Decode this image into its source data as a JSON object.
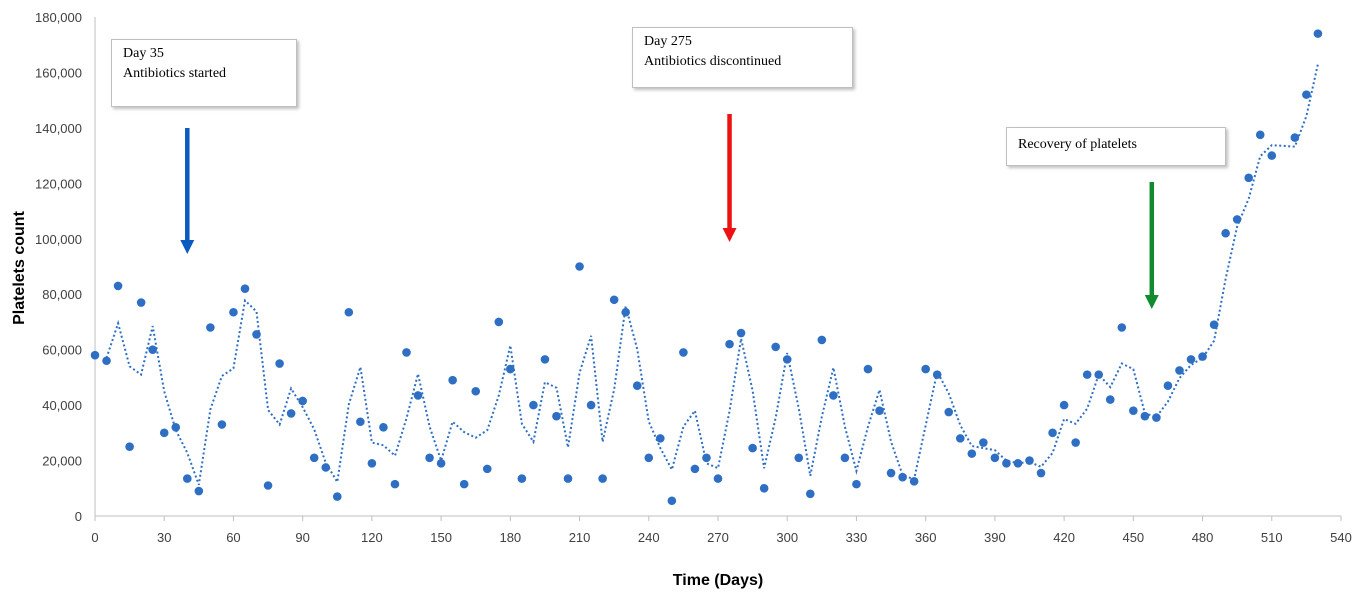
{
  "chart_data": {
    "type": "scatter",
    "xlabel": "Time (Days)",
    "ylabel": "Platelets count",
    "xlim": [
      0,
      540
    ],
    "ylim": [
      0,
      180000
    ],
    "x_ticks": [
      "0",
      "30",
      "60",
      "90",
      "120",
      "150",
      "180",
      "210",
      "240",
      "270",
      "300",
      "330",
      "360",
      "390",
      "420",
      "450",
      "480",
      "510",
      "540"
    ],
    "y_ticks": [
      "0",
      "20,000",
      "40,000",
      "60,000",
      "80,000",
      "100,000",
      "120,000",
      "140,000",
      "160,000",
      "180,000"
    ],
    "grid": false,
    "colors": {
      "points": "#2e6fc4",
      "trendline": "#2e6fc4",
      "axis": "#bfbfbf"
    },
    "series": [
      {
        "style": "markers + dotted moving-average trendline",
        "x": [
          0,
          5,
          10,
          15,
          20,
          25,
          30,
          35,
          40,
          45,
          50,
          55,
          60,
          65,
          70,
          75,
          80,
          85,
          90,
          95,
          100,
          105,
          110,
          115,
          120,
          125,
          130,
          135,
          140,
          145,
          150,
          155,
          160,
          165,
          170,
          175,
          180,
          185,
          190,
          195,
          200,
          205,
          210,
          215,
          220,
          225,
          230,
          235,
          240,
          245,
          250,
          255,
          260,
          265,
          270,
          275,
          280,
          285,
          290,
          295,
          300,
          305,
          310,
          315,
          320,
          325,
          330,
          335,
          340,
          345,
          350,
          355,
          360,
          365,
          370,
          375,
          380,
          385,
          390,
          395,
          400,
          405,
          410,
          415,
          420,
          425,
          430,
          435,
          440,
          445,
          450,
          455,
          460,
          465,
          470,
          475,
          480,
          485,
          490,
          495,
          500,
          505,
          510,
          515,
          520,
          525,
          530
        ],
        "y": [
          58000,
          56000,
          83000,
          25000,
          77000,
          60000,
          30000,
          32000,
          13500,
          9000,
          68000,
          33000,
          73500,
          82000,
          65500,
          11000,
          55000,
          37000,
          41500,
          21000,
          17500,
          7000,
          73500,
          34000,
          19000,
          32000,
          11500,
          59000,
          43500,
          21000,
          19000,
          49000,
          11500,
          45000,
          17000,
          70000,
          53000,
          13500,
          40000,
          56500,
          36000,
          13500,
          90000,
          40000,
          13500,
          78000,
          73500,
          47000,
          21000,
          28000,
          5500,
          59000,
          17000,
          21000,
          13500,
          62000,
          66000,
          24500,
          10000,
          61000,
          56500,
          21000,
          8000,
          63500,
          43500,
          21000,
          11500,
          53000,
          38000,
          15500,
          14000,
          12500,
          53000,
          51000,
          37500,
          28000,
          22500,
          26500,
          21000,
          19000,
          19000,
          20000,
          15500,
          30000,
          40000,
          26500,
          51000,
          51000,
          42000,
          68000,
          38000,
          36000,
          35500,
          47000,
          52500,
          56500,
          57500,
          69000,
          102000,
          107000,
          122000,
          137500,
          130000,
          null,
          136500,
          152000,
          174000
        ]
      }
    ],
    "annotations": [
      {
        "lines": [
          "Day 35",
          "Antibiotics started"
        ],
        "x": 40,
        "arrow_color": "#0a5bbf"
      },
      {
        "lines": [
          "Day 275",
          "Antibiotics discontinued"
        ],
        "x": 275,
        "arrow_color": "#ee1111"
      },
      {
        "lines": [
          "Recovery of platelets"
        ],
        "x": 458,
        "arrow_color": "#128a2e"
      }
    ]
  }
}
